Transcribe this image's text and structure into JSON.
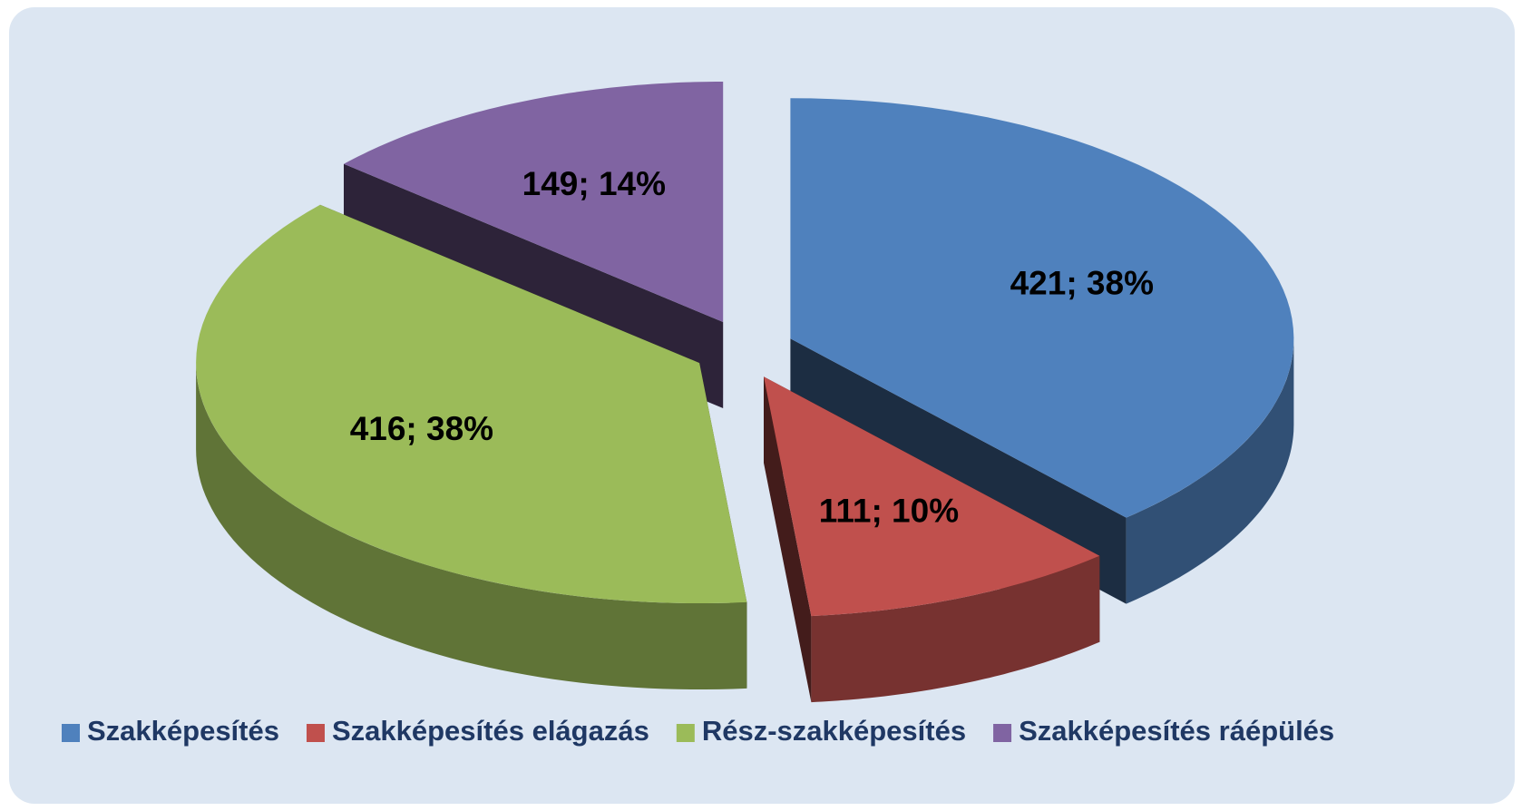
{
  "chart_data": {
    "type": "pie",
    "categories": [
      "Szakképesítés",
      "Szakképesítés elágazás",
      "Rész-szakképesítés",
      "Szakképesítés ráépülés"
    ],
    "values": [
      421,
      111,
      416,
      149
    ],
    "value_labels": [
      "421; 38%",
      "111; 10%",
      "416; 38%",
      "149; 14%"
    ],
    "colors": [
      "#4f81bd",
      "#c0504d",
      "#9bbb59",
      "#8064a2"
    ],
    "legend": "bottom"
  }
}
